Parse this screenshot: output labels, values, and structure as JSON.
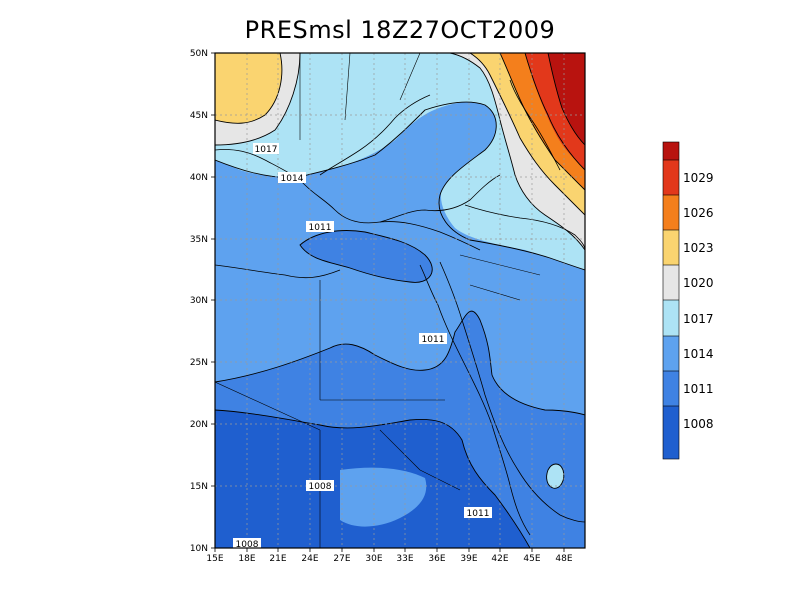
{
  "title": "PRESmsl  18Z27OCT2009",
  "map": {
    "lon_range": [
      15,
      50
    ],
    "lat_range": [
      10,
      50
    ],
    "lon_ticks": [
      "15E",
      "18E",
      "21E",
      "24E",
      "27E",
      "30E",
      "33E",
      "36E",
      "39E",
      "42E",
      "45E",
      "48E"
    ],
    "lat_ticks": [
      "10N",
      "15N",
      "20N",
      "25N",
      "30N",
      "35N",
      "40N",
      "45N",
      "50N"
    ],
    "contour_labels": [
      "1017",
      "1014",
      "1011",
      "1011",
      "1008",
      "1008",
      "1011"
    ],
    "grid": true
  },
  "colors": {
    "c1005": "#1f5fcf",
    "c1008": "#3f82e3",
    "c1011": "#5ea2ef",
    "c1014": "#ade3f5",
    "c1017": "#e6e6e6",
    "c1020": "#fad470",
    "c1023": "#f47f1c",
    "c1026": "#e2381b",
    "c1029": "#b8130f"
  },
  "colorbar": {
    "labels": [
      "1029",
      "1026",
      "1023",
      "1020",
      "1017",
      "1014",
      "1011",
      "1008"
    ]
  }
}
